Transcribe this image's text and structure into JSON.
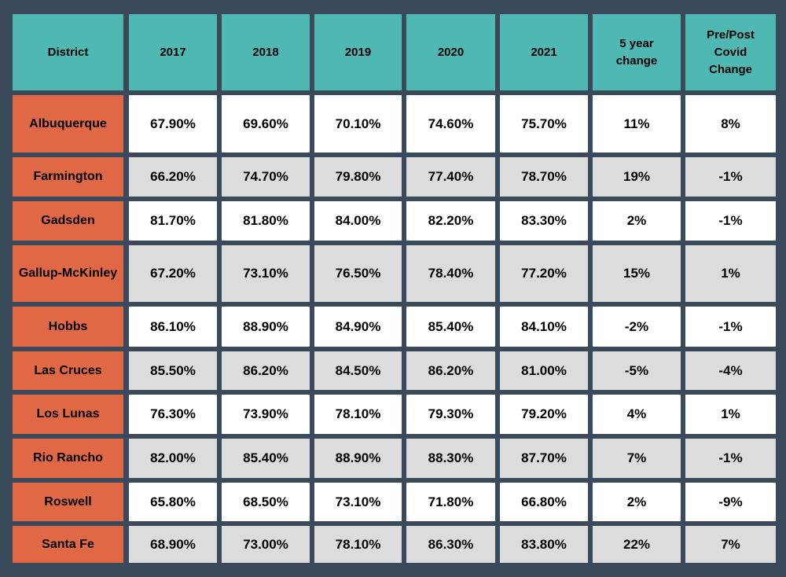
{
  "chart_data": {
    "type": "table",
    "columns": [
      "District",
      "2017",
      "2018",
      "2019",
      "2020",
      "2021",
      "5 year\nchange",
      "Pre/Post\nCovid\nChange"
    ],
    "rows": [
      [
        "Albuquerque",
        "67.90%",
        "69.60%",
        "70.10%",
        "74.60%",
        "75.70%",
        "11%",
        "8%"
      ],
      [
        "Farmington",
        "66.20%",
        "74.70%",
        "79.80%",
        "77.40%",
        "78.70%",
        "19%",
        "-1%"
      ],
      [
        "Gadsden",
        "81.70%",
        "81.80%",
        "84.00%",
        "82.20%",
        "83.30%",
        "2%",
        "-1%"
      ],
      [
        "Gallup-McKinley",
        "67.20%",
        "73.10%",
        "76.50%",
        "78.40%",
        "77.20%",
        "15%",
        "1%"
      ],
      [
        "Hobbs",
        "86.10%",
        "88.90%",
        "84.90%",
        "85.40%",
        "84.10%",
        "-2%",
        "-1%"
      ],
      [
        "Las Cruces",
        "85.50%",
        "86.20%",
        "84.50%",
        "86.20%",
        "81.00%",
        "-5%",
        "-4%"
      ],
      [
        "Los Lunas",
        "76.30%",
        "73.90%",
        "78.10%",
        "79.30%",
        "79.20%",
        "4%",
        "1%"
      ],
      [
        "Rio Rancho",
        "82.00%",
        "85.40%",
        "88.90%",
        "88.30%",
        "87.70%",
        "7%",
        "-1%"
      ],
      [
        "Roswell",
        "65.80%",
        "68.50%",
        "73.10%",
        "71.80%",
        "66.80%",
        "2%",
        "-9%"
      ],
      [
        "Santa Fe",
        "68.90%",
        "73.00%",
        "78.10%",
        "86.30%",
        "83.80%",
        "22%",
        "7%"
      ]
    ]
  },
  "colors": {
    "background": "#3b4a5a",
    "header": "#4fb8b2",
    "district": "#e06844",
    "row_light": "#ffffff",
    "row_gray": "#dcdcdc"
  }
}
